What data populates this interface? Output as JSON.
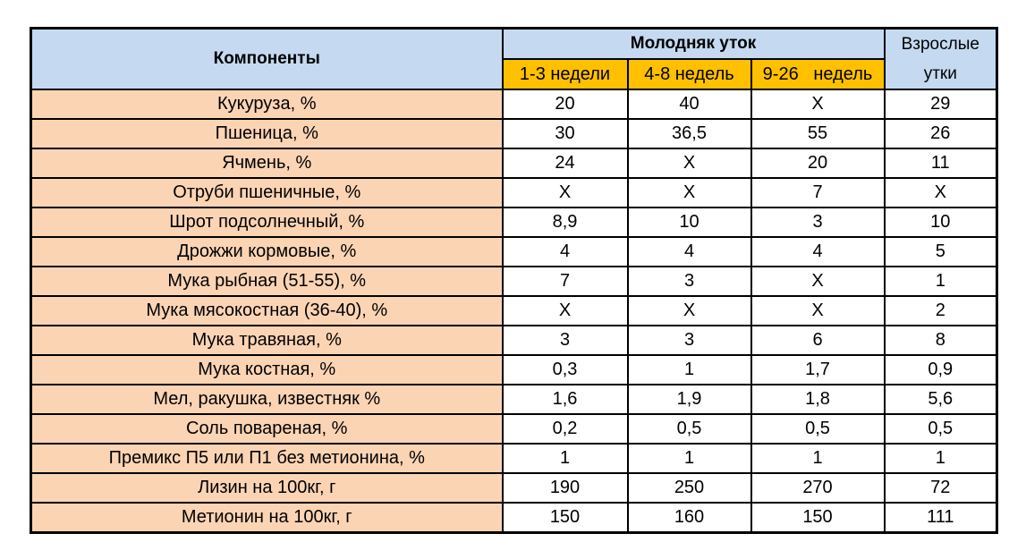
{
  "table": {
    "header": {
      "components": "Компоненты",
      "group": "Молодняк уток",
      "subcolumns": [
        "1-3 недели",
        "4-8 недель",
        "9-26   недель"
      ],
      "adult": "Взрослые утки"
    },
    "rows": [
      [
        "Кукуруза, %",
        "20",
        "40",
        "Х",
        "29"
      ],
      [
        "Пшеница, %",
        "30",
        "36,5",
        "55",
        "26"
      ],
      [
        "Ячмень, %",
        "24",
        "Х",
        "20",
        "11"
      ],
      [
        "Отруби пшеничные, %",
        "Х",
        "Х",
        "7",
        "Х"
      ],
      [
        "Шрот подсолнечный, %",
        "8,9",
        "10",
        "3",
        "10"
      ],
      [
        "Дрожжи кормовые, %",
        "4",
        "4",
        "4",
        "5"
      ],
      [
        "Мука рыбная (51-55), %",
        "7",
        "3",
        "Х",
        "1"
      ],
      [
        "Мука мясокостная (36-40), %",
        "Х",
        "Х",
        "Х",
        "2"
      ],
      [
        "Мука травяная, %",
        "3",
        "3",
        "6",
        "8"
      ],
      [
        "Мука костная, %",
        "0,3",
        "1",
        "1,7",
        "0,9"
      ],
      [
        "Мел, ракушка, известняк %",
        "1,6",
        "1,9",
        "1,8",
        "5,6"
      ],
      [
        "Соль повареная, %",
        "0,2",
        "0,5",
        "0,5",
        "0,5"
      ],
      [
        "Премикс П5 или П1 без метионина, %",
        "1",
        "1",
        "1",
        "1"
      ],
      [
        "Лизин на 100кг, г",
        "190",
        "250",
        "270",
        "72"
      ],
      [
        "Метионин на 100кг, г",
        "150",
        "160",
        "150",
        "111"
      ]
    ]
  }
}
